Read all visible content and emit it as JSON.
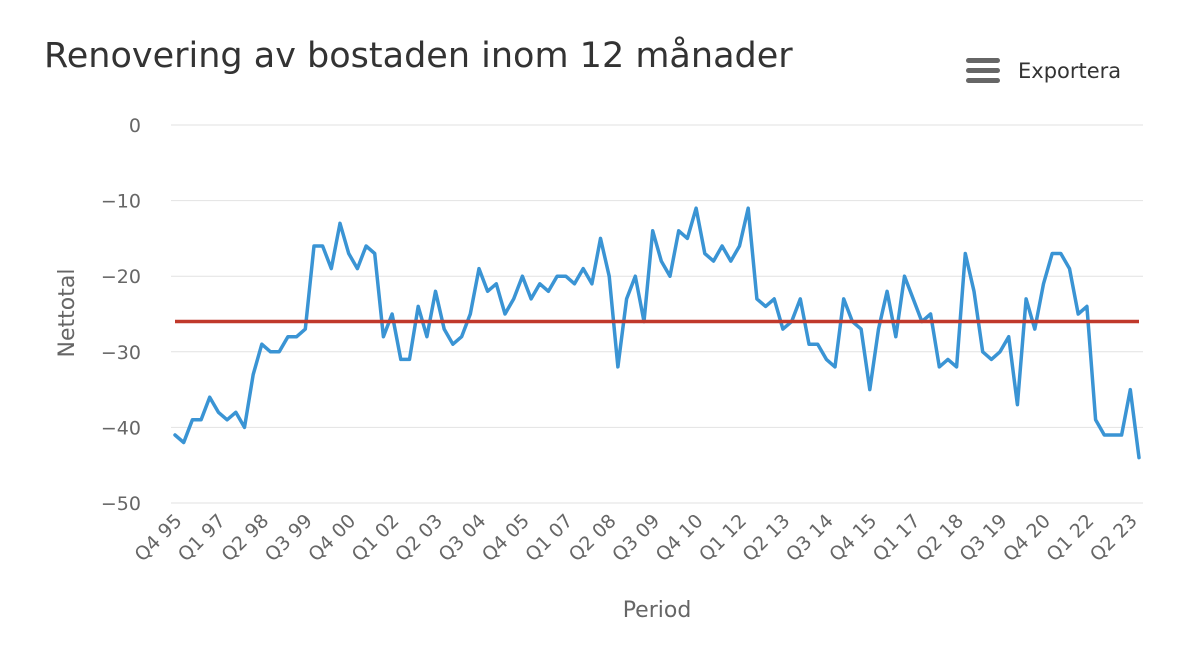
{
  "header": {
    "title": "Renovering av bostaden inom 12 månader",
    "export_label": "Exportera",
    "export_icon": "menu-icon"
  },
  "colors": {
    "series_line": "#3a94d4",
    "reference_line": "#c0392b",
    "grid": "#e2e2e2"
  },
  "chart_data": {
    "type": "line",
    "title": "Renovering av bostaden inom 12 månader",
    "xlabel": "Period",
    "ylabel": "Nettotal",
    "ylim": [
      -50,
      0
    ],
    "yticks": [
      0,
      -10,
      -20,
      -30,
      -40,
      -50
    ],
    "ytick_labels": [
      "0",
      "−10",
      "−20",
      "−30",
      "−40",
      "−50"
    ],
    "x_tick_labels": [
      {
        "label": "Q4 95",
        "index": 0
      },
      {
        "label": "Q1 97",
        "index": 5
      },
      {
        "label": "Q2 98",
        "index": 10
      },
      {
        "label": "Q3 99",
        "index": 15
      },
      {
        "label": "Q4 00",
        "index": 20
      },
      {
        "label": "Q1 02",
        "index": 25
      },
      {
        "label": "Q2 03",
        "index": 30
      },
      {
        "label": "Q3 04",
        "index": 35
      },
      {
        "label": "Q4 05",
        "index": 40
      },
      {
        "label": "Q1 07",
        "index": 45
      },
      {
        "label": "Q2 08",
        "index": 50
      },
      {
        "label": "Q3 09",
        "index": 55
      },
      {
        "label": "Q4 10",
        "index": 60
      },
      {
        "label": "Q1 12",
        "index": 65
      },
      {
        "label": "Q2 13",
        "index": 70
      },
      {
        "label": "Q3 14",
        "index": 75
      },
      {
        "label": "Q4 15",
        "index": 80
      },
      {
        "label": "Q1 17",
        "index": 85
      },
      {
        "label": "Q2 18",
        "index": 90
      },
      {
        "label": "Q3 19",
        "index": 95
      },
      {
        "label": "Q4 20",
        "index": 100
      },
      {
        "label": "Q1 22",
        "index": 105
      },
      {
        "label": "Q2 23",
        "index": 110
      }
    ],
    "grid": true,
    "legend": "none",
    "series": [
      {
        "values": [
          -41,
          -42,
          -39,
          -39,
          -36,
          -38,
          -39,
          -38,
          -40,
          -33,
          -29,
          -30,
          -30,
          -28,
          -28,
          -27,
          -16,
          -16,
          -19,
          -13,
          -17,
          -19,
          -16,
          -17,
          -28,
          -25,
          -31,
          -31,
          -24,
          -28,
          -22,
          -27,
          -29,
          -28,
          -25,
          -19,
          -22,
          -21,
          -25,
          -23,
          -20,
          -23,
          -21,
          -22,
          -20,
          -20,
          -21,
          -19,
          -21,
          -15,
          -20,
          -32,
          -23,
          -20,
          -26,
          -14,
          -18,
          -20,
          -14,
          -15,
          -11,
          -17,
          -18,
          -16,
          -18,
          -16,
          -11,
          -23,
          -24,
          -23,
          -27,
          -26,
          -23,
          -29,
          -29,
          -31,
          -32,
          -23,
          -26,
          -27,
          -35,
          -27,
          -22,
          -28,
          -20,
          -23,
          -26,
          -25,
          -32,
          -31,
          -32,
          -17,
          -22,
          -30,
          -31,
          -30,
          -28,
          -37,
          -23,
          -27,
          -21,
          -17,
          -17,
          -19,
          -25,
          -24,
          -39,
          -41,
          -41,
          -41,
          -35,
          -44
        ]
      },
      {
        "values": [
          -26,
          -26
        ]
      }
    ]
  }
}
